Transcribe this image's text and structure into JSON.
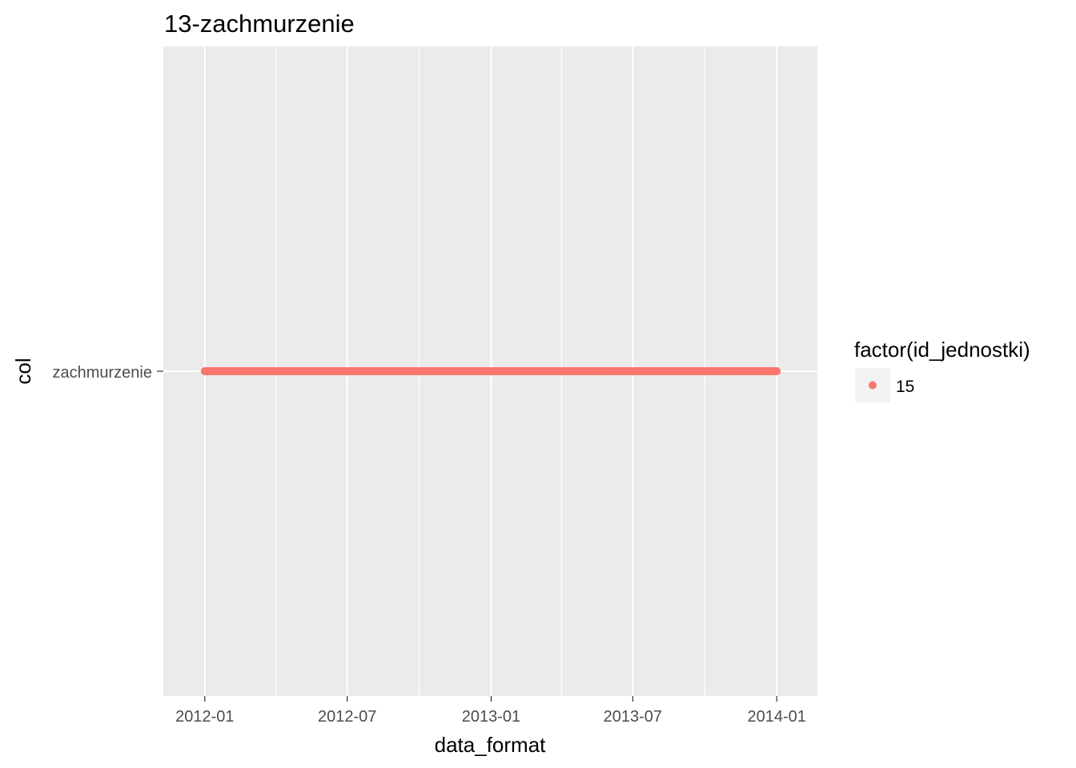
{
  "chart_data": {
    "type": "scatter",
    "title": "13-zachmurzenie",
    "xlabel": "data_format",
    "ylabel": "col",
    "x_type": "date",
    "x_ticks": [
      "2012-01",
      "2012-07",
      "2013-01",
      "2013-07",
      "2014-01"
    ],
    "x_minor_ticks": [
      "2012-04",
      "2012-10",
      "2013-04",
      "2013-10"
    ],
    "xlim": [
      "2011-11-09",
      "2014-02-22"
    ],
    "y_categories": [
      "zachmurzenie"
    ],
    "series": [
      {
        "name": "15",
        "color": "#F8766D",
        "y": "zachmurzenie",
        "x_range": [
          "2012-01-01",
          "2014-01-01"
        ],
        "frequency": "daily"
      }
    ],
    "legend": {
      "title": "factor(id_jednostki)",
      "position": "right",
      "entries": [
        "15"
      ]
    },
    "grid": true,
    "panel_background": "#EBEBEB",
    "grid_color": "#FFFFFF"
  }
}
